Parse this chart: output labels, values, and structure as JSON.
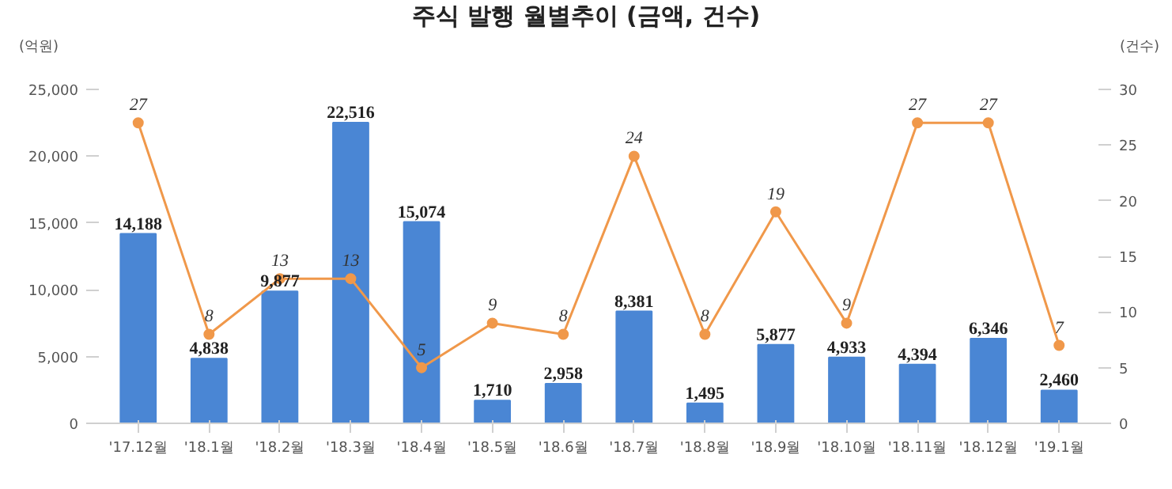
{
  "chart_data": {
    "type": "bar",
    "title": "주식 발행 월별추이 (금액, 건수)",
    "ylabel": "(억원)",
    "y2label": "(건수)",
    "categories": [
      "'17.12월",
      "'18.1월",
      "'18.2월",
      "'18.3월",
      "'18.4월",
      "'18.5월",
      "'18.6월",
      "'18.7월",
      "'18.8월",
      "'18.9월",
      "'18.10월",
      "'18.11월",
      "'18.12월",
      "'19.1월"
    ],
    "series": [
      {
        "color": "#4a86d4",
        "values": [
          14188,
          4838,
          9877,
          22516,
          15074,
          1710,
          2958,
          8381,
          1495,
          5877,
          4933,
          4394,
          6346,
          2460
        ],
        "value_labels": [
          "14,188",
          "4,838",
          "9,877",
          "22,516",
          "15,074",
          "1,710",
          "2,958",
          "8,381",
          "1,495",
          "5,877",
          "4,933",
          "4,394",
          "6,346",
          "2,460"
        ]
      },
      {
        "type": "line",
        "axis": "y2",
        "color": "#f0984a",
        "marker": "circle",
        "values": [
          27,
          8,
          13,
          13,
          5,
          9,
          8,
          24,
          8,
          19,
          9,
          27,
          27,
          7
        ],
        "value_labels": [
          "27",
          "8",
          "13",
          "13",
          "5",
          "9",
          "8",
          "24",
          "8",
          "19",
          "9",
          "27",
          "27",
          "7"
        ]
      }
    ],
    "ylim": [
      0,
      25000
    ],
    "yticks": [
      0,
      {
        "value": 5000,
        "label": "5,000"
      },
      {
        "value": 10000,
        "label": "10,000"
      },
      {
        "value": 15000,
        "label": "15,000"
      },
      {
        "value": 20000,
        "label": "20,000"
      },
      {
        "value": 25000,
        "label": "25,000"
      }
    ],
    "y2lim": [
      0,
      30
    ],
    "y2ticks": [
      0,
      5,
      10,
      15,
      20,
      25,
      30
    ],
    "grid": false
  }
}
